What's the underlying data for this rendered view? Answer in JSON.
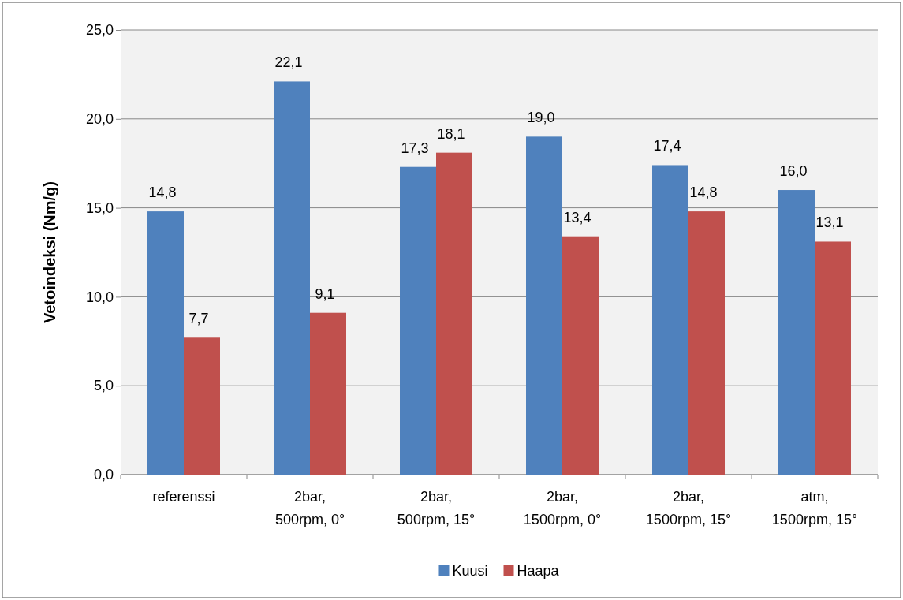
{
  "chart_data": {
    "type": "bar",
    "ylabel": "Vetoindeksi (Nm/g)",
    "categories": [
      "referenssi",
      "2bar, 500rpm, 0°",
      "2bar, 500rpm, 15°",
      "2bar, 1500rpm, 0°",
      "2bar, 1500rpm, 15°",
      "atm, 1500rpm, 15°"
    ],
    "series": [
      {
        "name": "Kuusi",
        "color": "#4f81bd",
        "values": [
          14.8,
          22.1,
          17.3,
          19.0,
          17.4,
          16.0
        ],
        "value_labels": [
          "14,8",
          "22,1",
          "17,3",
          "19,0",
          "17,4",
          "16,0"
        ]
      },
      {
        "name": "Haapa",
        "color": "#c0504d",
        "values": [
          7.7,
          9.1,
          18.1,
          13.4,
          14.8,
          13.1
        ],
        "value_labels": [
          "7,7",
          "9,1",
          "18,1",
          "13,4",
          "14,8",
          "13,1"
        ]
      }
    ],
    "ylim": [
      0,
      25
    ],
    "yticks": [
      {
        "value": 0,
        "label": "0,0"
      },
      {
        "value": 5,
        "label": "5,0"
      },
      {
        "value": 10,
        "label": "10,0"
      },
      {
        "value": 15,
        "label": "15,0"
      },
      {
        "value": 20,
        "label": "20,0"
      },
      {
        "value": 25,
        "label": "25,0"
      }
    ],
    "grid": "y",
    "legend": "bottom"
  }
}
